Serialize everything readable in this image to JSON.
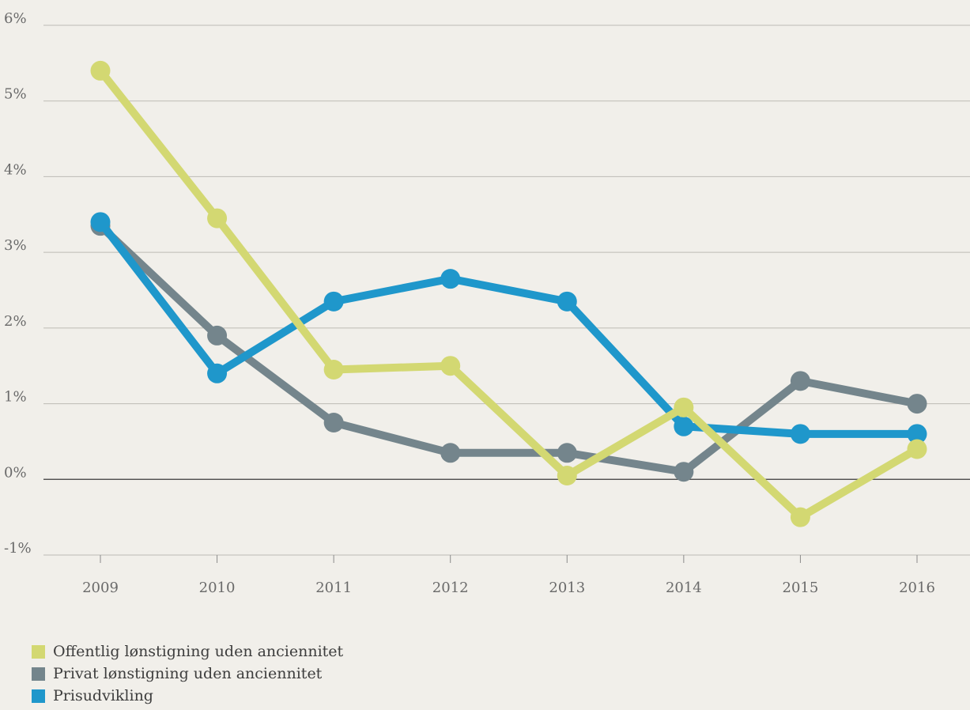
{
  "chart_data": {
    "type": "line",
    "x": [
      "2009",
      "2010",
      "2011",
      "2012",
      "2013",
      "2014",
      "2015",
      "2016"
    ],
    "y_ticks": [
      "6%",
      "5%",
      "4%",
      "3%",
      "2%",
      "1%",
      "0%",
      "-1%"
    ],
    "ylim": [
      -1,
      6
    ],
    "grid": true,
    "legend_position": "bottom-left",
    "series": [
      {
        "name": "Offentlig lønstigning uden anciennitet",
        "color": "#d3d872",
        "values": [
          5.4,
          3.45,
          1.45,
          1.5,
          0.05,
          0.95,
          -0.5,
          0.4
        ]
      },
      {
        "name": "Privat lønstigning uden anciennitet",
        "color": "#74858c",
        "values": [
          3.35,
          1.9,
          0.75,
          0.35,
          0.35,
          0.1,
          1.3,
          1.0
        ]
      },
      {
        "name": "Prisudvikling",
        "color": "#1f97cb",
        "values": [
          3.4,
          1.4,
          2.35,
          2.65,
          2.35,
          0.7,
          0.6,
          0.6
        ]
      }
    ],
    "draw_order": [
      1,
      2,
      0
    ]
  }
}
